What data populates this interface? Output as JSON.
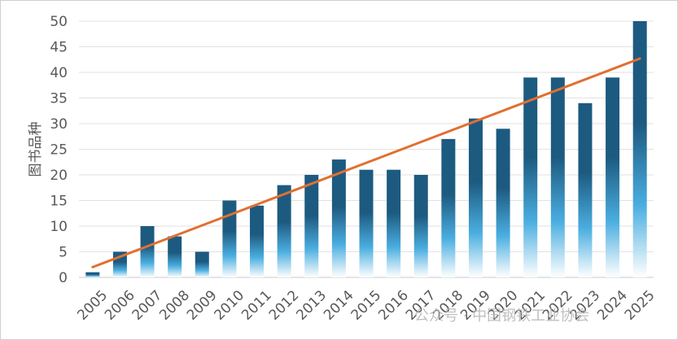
{
  "chart_data": {
    "type": "bar",
    "title": "",
    "xlabel": "",
    "ylabel": "图书品种",
    "ylim": [
      0,
      50
    ],
    "yticks": [
      0,
      5,
      10,
      15,
      20,
      25,
      30,
      35,
      40,
      45,
      50
    ],
    "grid": true,
    "categories": [
      "2005",
      "2006",
      "2007",
      "2008",
      "2009",
      "2010",
      "2011",
      "2012",
      "2013",
      "2014",
      "2015",
      "2016",
      "2017",
      "2018",
      "2019",
      "2020",
      "2021",
      "2022",
      "2023",
      "2024",
      "2025"
    ],
    "values": [
      1,
      5,
      10,
      8,
      5,
      15,
      14,
      18,
      20,
      23,
      21,
      21,
      20,
      27,
      31,
      29,
      39,
      39,
      34,
      39,
      50
    ],
    "trendline": {
      "type": "linear",
      "start_value": 2,
      "end_value": 42.7
    },
    "bar_colors": {
      "top": "#1d5a80",
      "middle": "#4aaee0",
      "bottom": "#ffffff"
    },
    "trendline_color": "#e07030"
  },
  "watermark": {
    "text": "公众号 · 中国钢铁工业协会"
  }
}
